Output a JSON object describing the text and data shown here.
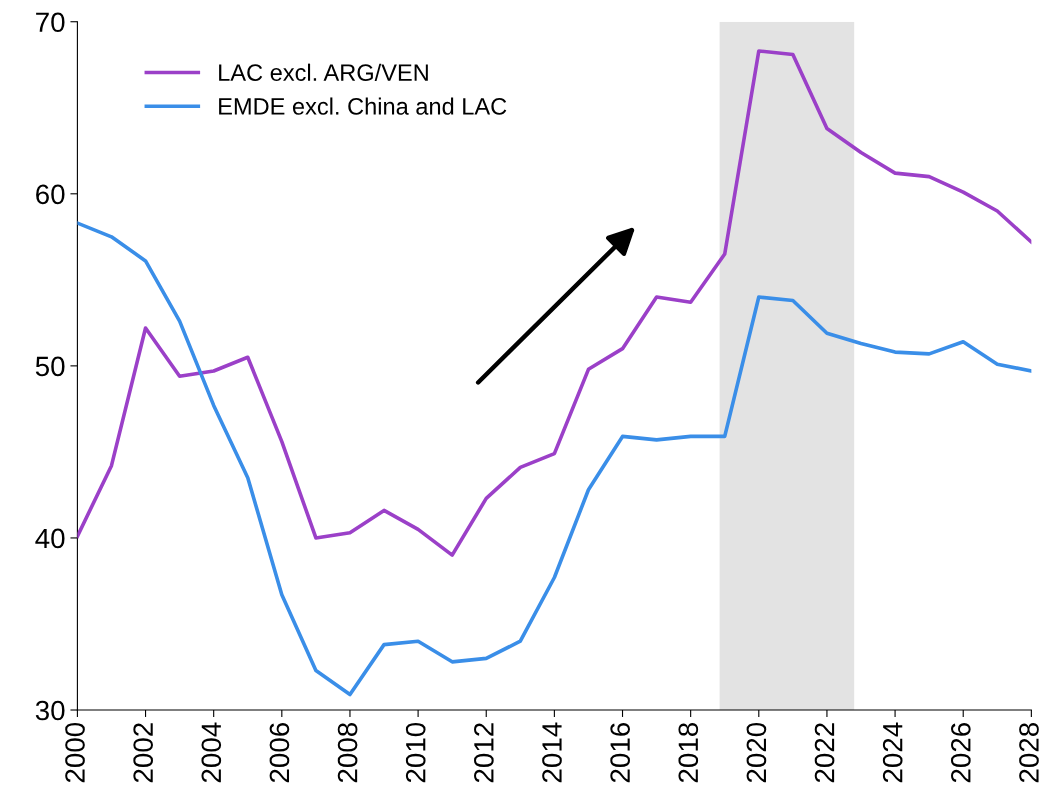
{
  "chart_data": {
    "type": "line",
    "x": [
      2000,
      2001,
      2002,
      2003,
      2004,
      2005,
      2006,
      2007,
      2008,
      2009,
      2010,
      2011,
      2012,
      2013,
      2014,
      2015,
      2016,
      2017,
      2018,
      2019,
      2020,
      2021,
      2022,
      2023,
      2024,
      2025,
      2026,
      2027,
      2028
    ],
    "series": [
      {
        "name": "LAC excl. ARG/VEN",
        "color": "#9b40c8",
        "values": [
          40.1,
          44.2,
          52.2,
          49.4,
          49.7,
          50.5,
          45.6,
          40.0,
          40.3,
          41.6,
          40.5,
          39.0,
          42.3,
          44.1,
          44.9,
          49.8,
          51.0,
          54.0,
          53.7,
          56.5,
          68.3,
          68.1,
          63.8,
          62.4,
          61.2,
          61.0,
          60.1,
          59.0,
          57.2
        ]
      },
      {
        "name": "EMDE excl. China and LAC",
        "color": "#3a8ee8",
        "values": [
          58.3,
          57.5,
          56.1,
          52.6,
          47.7,
          43.5,
          36.7,
          32.3,
          30.9,
          33.8,
          34.0,
          32.8,
          33.0,
          34.0,
          37.7,
          42.8,
          45.9,
          45.7,
          45.9,
          45.9,
          54.0,
          53.8,
          51.9,
          51.3,
          50.8,
          50.7,
          51.4,
          50.1,
          49.7
        ]
      }
    ],
    "xlim": [
      2000,
      2028
    ],
    "xticks": [
      2000,
      2002,
      2004,
      2006,
      2008,
      2010,
      2012,
      2014,
      2016,
      2018,
      2020,
      2022,
      2024,
      2026,
      2028
    ],
    "ylim": [
      30,
      70
    ],
    "yticks": [
      30,
      40,
      50,
      60,
      70
    ],
    "bands": [
      {
        "axis": "x",
        "from": 2018.85,
        "to": 2022.8,
        "color": "#e3e3e3"
      }
    ],
    "grid": false,
    "legend": "top left",
    "marker": "none",
    "line_style": "solid"
  }
}
